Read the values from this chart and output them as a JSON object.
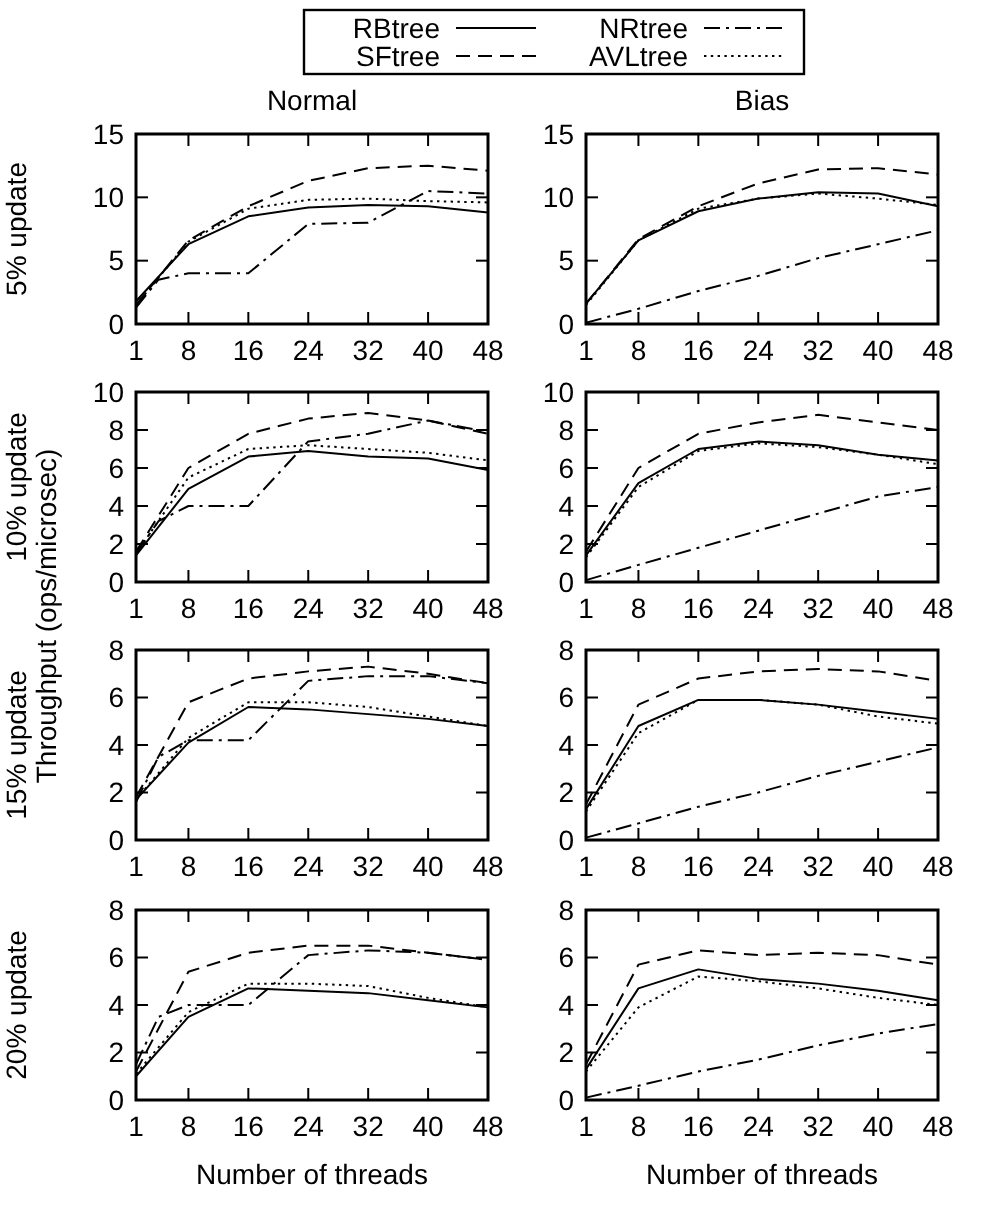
{
  "chart_data": [
    {
      "type": "line",
      "title": "Normal",
      "ylabel": "5% update",
      "legend": "top",
      "x": [
        1,
        8,
        16,
        24,
        32,
        40,
        48
      ],
      "xlim": [
        1,
        48
      ],
      "xticks": [
        1,
        8,
        16,
        24,
        32,
        40,
        48
      ],
      "ylim": [
        0,
        15
      ],
      "yticks": [
        0,
        5,
        10,
        15
      ],
      "series": [
        {
          "name": "RBtree",
          "color": "#000000",
          "line_style": "solid",
          "values": [
            1.8,
            6.3,
            8.5,
            9.2,
            9.4,
            9.3,
            8.8
          ]
        },
        {
          "name": "NRtree",
          "color": "#000000",
          "line_style": "dashdot",
          "x": [
            1,
            4,
            8,
            16,
            24,
            32,
            40,
            48
          ],
          "values": [
            1.3,
            3.5,
            4.0,
            4.0,
            7.9,
            8.0,
            10.5,
            10.3
          ]
        },
        {
          "name": "SFtree",
          "color": "#000000",
          "line_style": "dashed",
          "values": [
            1.5,
            6.6,
            9.3,
            11.3,
            12.3,
            12.5,
            12.1
          ]
        },
        {
          "name": "AVLtree",
          "color": "#000000",
          "line_style": "dotted",
          "values": [
            1.5,
            6.5,
            9.1,
            9.8,
            9.9,
            9.7,
            9.6
          ]
        }
      ]
    },
    {
      "type": "line",
      "title": "Bias",
      "x": [
        1,
        8,
        16,
        24,
        32,
        40,
        48
      ],
      "xlim": [
        1,
        48
      ],
      "xticks": [
        1,
        8,
        16,
        24,
        32,
        40,
        48
      ],
      "ylim": [
        0,
        15
      ],
      "yticks": [
        0,
        5,
        10,
        15
      ],
      "series": [
        {
          "color": "#000000",
          "line_style": "solid",
          "values": [
            1.6,
            6.6,
            8.9,
            9.9,
            10.4,
            10.3,
            9.3
          ]
        },
        {
          "color": "#000000",
          "line_style": "dashdot",
          "values": [
            0.1,
            1.2,
            2.6,
            3.8,
            5.2,
            6.3,
            7.4
          ]
        },
        {
          "color": "#000000",
          "line_style": "dashed",
          "values": [
            1.6,
            6.7,
            9.3,
            11.1,
            12.2,
            12.3,
            11.8
          ]
        },
        {
          "color": "#000000",
          "line_style": "dotted",
          "values": [
            1.5,
            6.6,
            9.1,
            9.9,
            10.3,
            9.9,
            9.4
          ]
        }
      ]
    },
    {
      "type": "line",
      "ylabel": "10% update",
      "annotations": [
        "Throughput (ops/microsec)"
      ],
      "x": [
        1,
        8,
        16,
        24,
        32,
        40,
        48
      ],
      "xlim": [
        1,
        48
      ],
      "xticks": [
        1,
        8,
        16,
        24,
        32,
        40,
        48
      ],
      "ylim": [
        0,
        10
      ],
      "yticks": [
        0,
        2,
        4,
        6,
        8,
        10
      ],
      "series": [
        {
          "color": "#000000",
          "line_style": "solid",
          "values": [
            1.4,
            4.9,
            6.6,
            6.9,
            6.6,
            6.5,
            5.9
          ]
        },
        {
          "color": "#000000",
          "line_style": "dashdot",
          "x": [
            1,
            4,
            8,
            16,
            24,
            32,
            40,
            48
          ],
          "values": [
            1.5,
            3.2,
            4.0,
            4.0,
            7.4,
            7.8,
            8.5,
            7.9
          ]
        },
        {
          "color": "#000000",
          "line_style": "dashed",
          "values": [
            1.6,
            6.0,
            7.8,
            8.6,
            8.9,
            8.5,
            7.8
          ]
        },
        {
          "color": "#000000",
          "line_style": "dotted",
          "values": [
            1.5,
            5.5,
            7.0,
            7.2,
            7.0,
            6.8,
            6.4
          ]
        }
      ]
    },
    {
      "type": "line",
      "x": [
        1,
        8,
        16,
        24,
        32,
        40,
        48
      ],
      "xlim": [
        1,
        48
      ],
      "xticks": [
        1,
        8,
        16,
        24,
        32,
        40,
        48
      ],
      "ylim": [
        0,
        10
      ],
      "yticks": [
        0,
        2,
        4,
        6,
        8,
        10
      ],
      "series": [
        {
          "color": "#000000",
          "line_style": "solid",
          "values": [
            1.4,
            5.2,
            7.0,
            7.4,
            7.2,
            6.7,
            6.4
          ]
        },
        {
          "color": "#000000",
          "line_style": "dashdot",
          "values": [
            0.1,
            0.9,
            1.8,
            2.7,
            3.6,
            4.5,
            5.0
          ]
        },
        {
          "color": "#000000",
          "line_style": "dashed",
          "values": [
            1.6,
            6.0,
            7.8,
            8.4,
            8.8,
            8.4,
            8.0
          ]
        },
        {
          "color": "#000000",
          "line_style": "dotted",
          "values": [
            1.3,
            5.0,
            6.9,
            7.3,
            7.1,
            6.7,
            6.2
          ]
        }
      ]
    },
    {
      "type": "line",
      "ylabel": "15% update",
      "x": [
        1,
        8,
        16,
        24,
        32,
        40,
        48
      ],
      "xlim": [
        1,
        48
      ],
      "xticks": [
        1,
        8,
        16,
        24,
        32,
        40,
        48
      ],
      "ylim": [
        0,
        8
      ],
      "yticks": [
        0,
        2,
        4,
        6,
        8
      ],
      "series": [
        {
          "color": "#000000",
          "line_style": "solid",
          "values": [
            1.7,
            4.1,
            5.6,
            5.5,
            5.3,
            5.1,
            4.8
          ]
        },
        {
          "color": "#000000",
          "line_style": "dashdot",
          "x": [
            1,
            4,
            8,
            16,
            24,
            32,
            40,
            48
          ],
          "values": [
            1.6,
            3.5,
            4.2,
            4.2,
            6.7,
            6.9,
            6.9,
            6.6
          ]
        },
        {
          "color": "#000000",
          "line_style": "dashed",
          "values": [
            1.8,
            5.8,
            6.8,
            7.1,
            7.3,
            7.0,
            6.6
          ]
        },
        {
          "color": "#000000",
          "line_style": "dotted",
          "values": [
            1.7,
            4.3,
            5.8,
            5.8,
            5.6,
            5.2,
            4.8
          ]
        }
      ]
    },
    {
      "type": "line",
      "x": [
        1,
        8,
        16,
        24,
        32,
        40,
        48
      ],
      "xlim": [
        1,
        48
      ],
      "xticks": [
        1,
        8,
        16,
        24,
        32,
        40,
        48
      ],
      "ylim": [
        0,
        8
      ],
      "yticks": [
        0,
        2,
        4,
        6,
        8
      ],
      "series": [
        {
          "color": "#000000",
          "line_style": "solid",
          "values": [
            1.3,
            4.8,
            5.9,
            5.9,
            5.7,
            5.4,
            5.1
          ]
        },
        {
          "color": "#000000",
          "line_style": "dashdot",
          "values": [
            0.1,
            0.7,
            1.4,
            2.0,
            2.7,
            3.3,
            3.9
          ]
        },
        {
          "color": "#000000",
          "line_style": "dashed",
          "values": [
            1.5,
            5.7,
            6.8,
            7.1,
            7.2,
            7.1,
            6.7
          ]
        },
        {
          "color": "#000000",
          "line_style": "dotted",
          "values": [
            1.2,
            4.5,
            5.9,
            5.9,
            5.7,
            5.2,
            4.9
          ]
        }
      ]
    },
    {
      "type": "line",
      "ylabel": "20% update",
      "xlabel": "Number of threads",
      "x": [
        1,
        8,
        16,
        24,
        32,
        40,
        48
      ],
      "xlim": [
        1,
        48
      ],
      "xticks": [
        1,
        8,
        16,
        24,
        32,
        40,
        48
      ],
      "ylim": [
        0,
        8
      ],
      "yticks": [
        0,
        2,
        4,
        6,
        8
      ],
      "series": [
        {
          "color": "#000000",
          "line_style": "solid",
          "values": [
            1.0,
            3.5,
            4.7,
            4.6,
            4.5,
            4.2,
            3.9
          ]
        },
        {
          "color": "#000000",
          "line_style": "dashdot",
          "x": [
            1,
            4,
            8,
            16,
            24,
            32,
            40,
            48
          ],
          "values": [
            1.5,
            3.5,
            4.0,
            4.0,
            6.1,
            6.3,
            6.2,
            5.9
          ]
        },
        {
          "color": "#000000",
          "line_style": "dashed",
          "values": [
            1.2,
            5.4,
            6.2,
            6.5,
            6.5,
            6.2,
            5.9
          ]
        },
        {
          "color": "#000000",
          "line_style": "dotted",
          "values": [
            1.1,
            3.7,
            4.9,
            4.9,
            4.8,
            4.3,
            3.9
          ]
        }
      ]
    },
    {
      "type": "line",
      "xlabel": "Number of threads",
      "x": [
        1,
        8,
        16,
        24,
        32,
        40,
        48
      ],
      "xlim": [
        1,
        48
      ],
      "xticks": [
        1,
        8,
        16,
        24,
        32,
        40,
        48
      ],
      "ylim": [
        0,
        8
      ],
      "yticks": [
        0,
        2,
        4,
        6,
        8
      ],
      "series": [
        {
          "color": "#000000",
          "line_style": "solid",
          "values": [
            1.3,
            4.7,
            5.5,
            5.1,
            4.9,
            4.6,
            4.2
          ]
        },
        {
          "color": "#000000",
          "line_style": "dashdot",
          "values": [
            0.1,
            0.6,
            1.2,
            1.7,
            2.3,
            2.8,
            3.2
          ]
        },
        {
          "color": "#000000",
          "line_style": "dashed",
          "values": [
            1.5,
            5.7,
            6.3,
            6.1,
            6.2,
            6.1,
            5.7
          ]
        },
        {
          "color": "#000000",
          "line_style": "dotted",
          "values": [
            1.2,
            3.9,
            5.2,
            5.0,
            4.7,
            4.3,
            4.0
          ]
        }
      ]
    }
  ]
}
